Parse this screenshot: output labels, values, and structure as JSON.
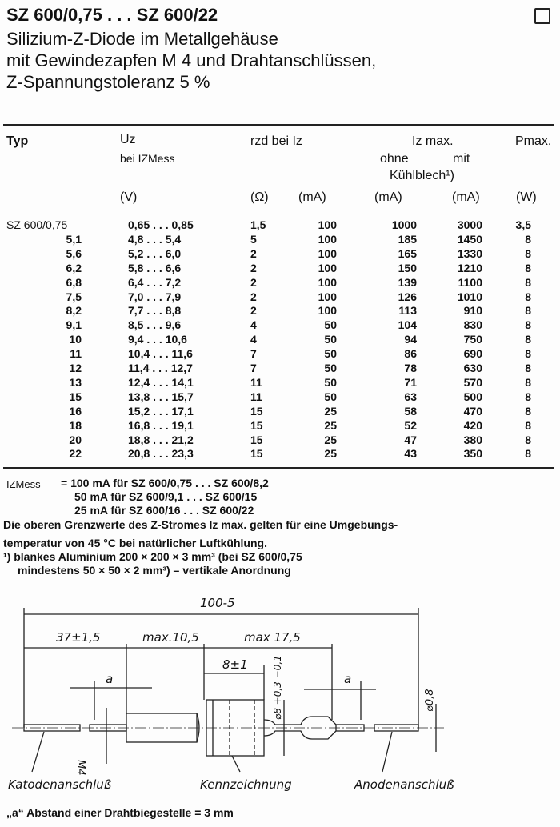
{
  "header": {
    "title": "SZ 600/0,75 . . . SZ 600/22",
    "subtitle_lines": [
      "Silizium-Z-Diode im Metallgehäuse",
      "mit Gewindezapfen M 4 und Drahtanschlüssen,",
      "Z-Spannungstoleranz 5 %"
    ]
  },
  "table": {
    "headers": {
      "typ": "Typ",
      "uz": "Uz",
      "uz_sub": "bei IZMess",
      "rzd": "rzd bei Iz",
      "iz_max": "Iz max.",
      "ohne": "ohne",
      "mit": "mit",
      "kuehlblech": "Kühlblech¹)",
      "pmax": "Pmax."
    },
    "units": [
      "(V)",
      "(Ω)",
      "(mA)",
      "(mA)",
      "(mA)",
      "(W)"
    ],
    "rows": [
      [
        "SZ 600/0,75",
        "0,65 . . . 0,85",
        "1,5",
        "100",
        "1000",
        "3000",
        "3,5"
      ],
      [
        "5,1",
        "4,8 . . . 5,4",
        "5",
        "100",
        "185",
        "1450",
        "8"
      ],
      [
        "5,6",
        "5,2 . . . 6,0",
        "2",
        "100",
        "165",
        "1330",
        "8"
      ],
      [
        "6,2",
        "5,8 . . . 6,6",
        "2",
        "100",
        "150",
        "1210",
        "8"
      ],
      [
        "6,8",
        "6,4 . . . 7,2",
        "2",
        "100",
        "139",
        "1100",
        "8"
      ],
      [
        "7,5",
        "7,0 . . . 7,9",
        "2",
        "100",
        "126",
        "1010",
        "8"
      ],
      [
        "8,2",
        "7,7 . . . 8,8",
        "2",
        "100",
        "113",
        "910",
        "8"
      ],
      [
        "9,1",
        "8,5 . . . 9,6",
        "4",
        "50",
        "104",
        "830",
        "8"
      ],
      [
        "10",
        "9,4 . . . 10,6",
        "4",
        "50",
        "94",
        "750",
        "8"
      ],
      [
        "11",
        "10,4 . . . 11,6",
        "7",
        "50",
        "86",
        "690",
        "8"
      ],
      [
        "12",
        "11,4 . . . 12,7",
        "7",
        "50",
        "78",
        "630",
        "8"
      ],
      [
        "13",
        "12,4 . . . 14,1",
        "11",
        "50",
        "71",
        "570",
        "8"
      ],
      [
        "15",
        "13,8 . . . 15,7",
        "11",
        "50",
        "63",
        "500",
        "8"
      ],
      [
        "16",
        "15,2 . . . 17,1",
        "15",
        "25",
        "58",
        "470",
        "8"
      ],
      [
        "18",
        "16,8 . . . 19,1",
        "15",
        "25",
        "52",
        "420",
        "8"
      ],
      [
        "20",
        "18,8 . . . 21,2",
        "15",
        "25",
        "47",
        "380",
        "8"
      ],
      [
        "22",
        "20,8 . . . 23,3",
        "15",
        "25",
        "43",
        "350",
        "8"
      ]
    ]
  },
  "notes": {
    "izmess_label": "IZMess",
    "izmess_lines": [
      "= 100 mA für SZ 600/0,75 . . . SZ 600/8,2",
      "50 mA für SZ 600/9,1 . . . SZ 600/15",
      "25 mA für SZ 600/16 . . . SZ 600/22"
    ],
    "para1": "Die oberen Grenzwerte des Z-Stromes Iz max. gelten für eine Umgebungs-",
    "para2": "temperatur von 45 °C bei natürlicher Luftkühlung.",
    "foot1": "¹) blankes Aluminium 200 × 200 × 3 mm³ (bei SZ 600/0,75",
    "foot2": "mindestens 50 × 50 × 2 mm³) – vertikale Anordnung"
  },
  "drawing": {
    "total": "100-5",
    "lead": "37±1,5",
    "thread": "max.10,5",
    "body": "max 17,5",
    "hex": "8±1",
    "a_left": "a",
    "a_right": "a",
    "dia_body": "⌀8 +0,3 −0,1",
    "dia_wire": "⌀0,8",
    "m4": "M4",
    "label_cathode": "Katodenanschluß",
    "label_marking": "Kennzeichnung",
    "label_anode": "Anodenanschluß"
  },
  "footer": "„a“ Abstand einer Drahtbiegestelle = 3 mm"
}
